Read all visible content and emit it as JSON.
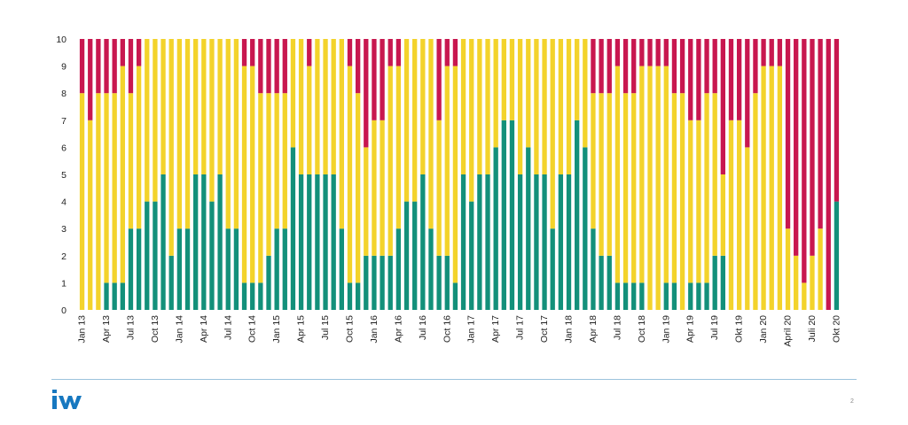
{
  "chart_data": {
    "type": "stacked-bar",
    "title": "",
    "xlabel": "",
    "ylabel": "",
    "ylim": [
      0,
      10
    ],
    "yticks": [
      0,
      1,
      2,
      3,
      4,
      5,
      6,
      7,
      8,
      9,
      10
    ],
    "grid": false,
    "categories": [
      "Jan 13",
      "Feb 13",
      "Mar 13",
      "Apr 13",
      "May 13",
      "Jun 13",
      "Jul 13",
      "Aug 13",
      "Sep 13",
      "Oct 13",
      "Nov 13",
      "Dec 13",
      "Jan 14",
      "Feb 14",
      "Mar 14",
      "Apr 14",
      "May 14",
      "Jun 14",
      "Jul 14",
      "Aug 14",
      "Sep 14",
      "Oct 14",
      "Nov 14",
      "Dec 14",
      "Jan 15",
      "Feb 15",
      "Mar 15",
      "Apr 15",
      "May 15",
      "Jun 15",
      "Jul 15",
      "Aug 15",
      "Sep 15",
      "Oct 15",
      "Nov 15",
      "Dec 15",
      "Jan 16",
      "Feb 16",
      "Mar 16",
      "Apr 16",
      "May 16",
      "Jun 16",
      "Jul 16",
      "Aug 16",
      "Sep 16",
      "Oct 16",
      "Nov 16",
      "Dec 16",
      "Jan 17",
      "Feb 17",
      "Mar 17",
      "Apr 17",
      "May 17",
      "Jun 17",
      "Jul 17",
      "Aug 17",
      "Sep 17",
      "Oct 17",
      "Nov 17",
      "Dec 17",
      "Jan 18",
      "Feb 18",
      "Mar 18",
      "Apr 18",
      "May 18",
      "Jun 18",
      "Jul 18",
      "Aug 18",
      "Sep 18",
      "Oct 18",
      "Nov 18",
      "Dec 18",
      "Jan 19",
      "Feb 19",
      "Mar 19",
      "Apr 19",
      "May 19",
      "Jun 19",
      "Jul 19",
      "Aug 19",
      "Sep 19",
      "Okt 19",
      "Nov 19",
      "Dec 19",
      "Jan 20",
      "Feb 20",
      "Mar 20",
      "April 20",
      "May 20",
      "Jun 20",
      "Juli 20",
      "Aug 20",
      "Sep 20",
      "Okt 20"
    ],
    "tick_labels": [
      {
        "index": 0,
        "label": "Jan 13"
      },
      {
        "index": 3,
        "label": "Apr 13"
      },
      {
        "index": 6,
        "label": "Jul 13"
      },
      {
        "index": 9,
        "label": "Oct 13"
      },
      {
        "index": 12,
        "label": "Jan 14"
      },
      {
        "index": 15,
        "label": "Apr 14"
      },
      {
        "index": 18,
        "label": "Jul 14"
      },
      {
        "index": 21,
        "label": "Oct 14"
      },
      {
        "index": 24,
        "label": "Jan 15"
      },
      {
        "index": 27,
        "label": "Apr 15"
      },
      {
        "index": 30,
        "label": "Jul 15"
      },
      {
        "index": 33,
        "label": "Oct 15"
      },
      {
        "index": 36,
        "label": "Jan 16"
      },
      {
        "index": 39,
        "label": "Apr 16"
      },
      {
        "index": 42,
        "label": "Jul 16"
      },
      {
        "index": 45,
        "label": "Oct 16"
      },
      {
        "index": 48,
        "label": "Jan 17"
      },
      {
        "index": 51,
        "label": "Apr 17"
      },
      {
        "index": 54,
        "label": "Jul 17"
      },
      {
        "index": 57,
        "label": "Oct 17"
      },
      {
        "index": 60,
        "label": "Jan 18"
      },
      {
        "index": 63,
        "label": "Apr 18"
      },
      {
        "index": 66,
        "label": "Jul 18"
      },
      {
        "index": 69,
        "label": "Oct 18"
      },
      {
        "index": 72,
        "label": "Jan 19"
      },
      {
        "index": 75,
        "label": "Apr 19"
      },
      {
        "index": 78,
        "label": "Jul 19"
      },
      {
        "index": 81,
        "label": "Okt 19"
      },
      {
        "index": 84,
        "label": "Jan 20"
      },
      {
        "index": 87,
        "label": "April 20"
      },
      {
        "index": 90,
        "label": "Juli 20"
      },
      {
        "index": 93,
        "label": "Okt 20"
      }
    ],
    "series": [
      {
        "name": "green",
        "color": "#13907a",
        "values": [
          0,
          0,
          0,
          1,
          1,
          1,
          3,
          3,
          4,
          4,
          5,
          2,
          3,
          3,
          5,
          5,
          4,
          5,
          3,
          3,
          1,
          1,
          1,
          2,
          3,
          3,
          6,
          5,
          5,
          5,
          5,
          5,
          3,
          1,
          1,
          2,
          2,
          2,
          2,
          3,
          4,
          4,
          5,
          3,
          2,
          2,
          1,
          5,
          4,
          5,
          5,
          6,
          7,
          7,
          5,
          6,
          5,
          5,
          3,
          5,
          5,
          7,
          6,
          3,
          2,
          2,
          1,
          1,
          1,
          1,
          0,
          0,
          1,
          1,
          0,
          1,
          1,
          1,
          2,
          2,
          0,
          0,
          0,
          0,
          0,
          0,
          0,
          0,
          0,
          0,
          0,
          0,
          0,
          4
        ]
      },
      {
        "name": "yellow",
        "color": "#f3d32b",
        "values": [
          8,
          7,
          8,
          7,
          7,
          8,
          5,
          6,
          6,
          6,
          5,
          8,
          7,
          7,
          5,
          5,
          6,
          5,
          7,
          7,
          8,
          8,
          7,
          6,
          5,
          5,
          4,
          5,
          4,
          5,
          5,
          5,
          7,
          8,
          7,
          4,
          5,
          5,
          7,
          6,
          6,
          6,
          5,
          7,
          5,
          7,
          8,
          5,
          6,
          5,
          5,
          4,
          3,
          3,
          5,
          4,
          5,
          5,
          7,
          5,
          5,
          3,
          4,
          5,
          6,
          6,
          8,
          7,
          7,
          8,
          9,
          9,
          8,
          7,
          8,
          6,
          6,
          7,
          6,
          3,
          7,
          7,
          6,
          8,
          9,
          9,
          9,
          3,
          2,
          1,
          2,
          3,
          0,
          0
        ]
      },
      {
        "name": "red",
        "color": "#c8174f",
        "values": [
          2,
          3,
          2,
          2,
          2,
          1,
          2,
          1,
          0,
          0,
          0,
          0,
          0,
          0,
          0,
          0,
          0,
          0,
          0,
          0,
          1,
          1,
          2,
          2,
          2,
          2,
          0,
          0,
          1,
          0,
          0,
          0,
          0,
          1,
          2,
          4,
          3,
          3,
          1,
          1,
          0,
          0,
          0,
          0,
          3,
          1,
          1,
          0,
          0,
          0,
          0,
          0,
          0,
          0,
          0,
          0,
          0,
          0,
          0,
          0,
          0,
          0,
          0,
          2,
          2,
          2,
          1,
          2,
          2,
          1,
          1,
          1,
          1,
          2,
          2,
          3,
          3,
          2,
          2,
          5,
          3,
          3,
          4,
          2,
          1,
          1,
          1,
          7,
          8,
          9,
          8,
          7,
          10,
          6
        ]
      }
    ]
  },
  "footer": {
    "logo_text": "iW",
    "page_number": "2",
    "divider_color": "#9cc3dc",
    "logo_color": "#1778c0"
  }
}
